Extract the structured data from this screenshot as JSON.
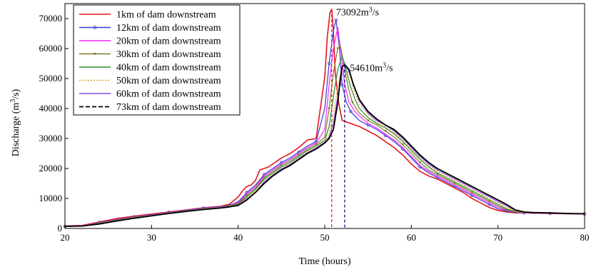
{
  "chart_data": {
    "type": "line",
    "xlabel": "Time (hours)",
    "ylabel": "Discharge (m",
    "ylabel_sup": "3",
    "ylabel_tail": "/s)",
    "xlim": [
      20,
      80
    ],
    "ylim": [
      0,
      75000
    ],
    "xticks": [
      20,
      30,
      40,
      50,
      60,
      70,
      80
    ],
    "yticks": [
      0,
      10000,
      20000,
      30000,
      40000,
      50000,
      60000,
      70000
    ],
    "grid": false,
    "legend_position": "top-left",
    "series": [
      {
        "name": "1km of dam downstream",
        "color": "#e8141c",
        "style": "solid",
        "x": [
          20,
          22,
          24,
          26,
          28,
          30,
          32,
          34,
          36,
          38,
          39,
          40,
          40.5,
          41,
          41.5,
          42,
          42.5,
          43,
          43.5,
          44,
          45,
          46,
          47,
          48,
          49,
          50,
          50.3,
          50.6,
          50.8,
          51,
          51.2,
          51.6,
          52,
          53,
          54,
          55,
          56,
          57,
          58,
          59,
          60,
          61,
          62,
          63,
          64,
          65,
          66,
          67,
          68,
          69,
          70,
          71,
          72,
          73,
          74,
          76,
          78,
          80
        ],
        "y": [
          800,
          1000,
          2200,
          3300,
          4100,
          4800,
          5500,
          6200,
          6900,
          7400,
          8100,
          10500,
          12500,
          14000,
          14500,
          16000,
          19500,
          20000,
          20500,
          21500,
          23500,
          25000,
          27000,
          29500,
          30000,
          50500,
          64000,
          72000,
          73092,
          66000,
          52000,
          42000,
          36000,
          35000,
          34000,
          32500,
          31000,
          29000,
          27000,
          24500,
          21500,
          19000,
          17500,
          16500,
          15000,
          13500,
          12000,
          10000,
          8500,
          7000,
          6000,
          5500,
          5200,
          5200,
          5100,
          5000,
          4900,
          4800
        ]
      },
      {
        "name": "12km of dam downstream",
        "color": "#3a3ad8",
        "style": "solid",
        "marker": "circle",
        "x": [
          20,
          22,
          24,
          26,
          28,
          30,
          32,
          34,
          36,
          38,
          39,
          40,
          41,
          42,
          43,
          44,
          45,
          46,
          47,
          48,
          49,
          50,
          50.5,
          51,
          51.3,
          51.7,
          52,
          52.5,
          53,
          54,
          55,
          56,
          57,
          58,
          59,
          60,
          61,
          62,
          63,
          64,
          65,
          66,
          67,
          68,
          69,
          70,
          71,
          72,
          73,
          74,
          76,
          78,
          80
        ],
        "y": [
          700,
          900,
          2000,
          3000,
          3900,
          4600,
          5400,
          6100,
          6800,
          7300,
          7700,
          8900,
          12000,
          14500,
          18000,
          20000,
          22000,
          23500,
          25500,
          27500,
          29000,
          40000,
          55000,
          66000,
          69500,
          60000,
          48000,
          42000,
          39000,
          36000,
          34500,
          33000,
          31000,
          29000,
          26500,
          23500,
          20500,
          18500,
          17000,
          15500,
          14000,
          12500,
          11000,
          9500,
          8000,
          6500,
          5800,
          5300,
          5200,
          5100,
          5000,
          4900,
          4800
        ]
      },
      {
        "name": "20km of dam downstream",
        "color": "#ff22ff",
        "style": "solid",
        "x": [
          20,
          22,
          24,
          26,
          28,
          30,
          32,
          34,
          36,
          38,
          39,
          40,
          41,
          42,
          43,
          44,
          45,
          46,
          47,
          48,
          49,
          50,
          50.5,
          51,
          51.5,
          51.9,
          52.3,
          52.8,
          53.5,
          54,
          55,
          56,
          57,
          58,
          59,
          60,
          61,
          62,
          63,
          64,
          65,
          66,
          67,
          68,
          69,
          70,
          71,
          72,
          73,
          74,
          76,
          78,
          80
        ],
        "y": [
          700,
          900,
          1900,
          2900,
          3800,
          4500,
          5300,
          6000,
          6700,
          7200,
          7600,
          8600,
          11500,
          14000,
          17500,
          19500,
          21500,
          23000,
          25000,
          27000,
          28500,
          33000,
          48000,
          60000,
          67000,
          58000,
          48000,
          42000,
          39000,
          37500,
          35000,
          33500,
          31500,
          29500,
          27000,
          24000,
          21000,
          19000,
          17500,
          16000,
          14500,
          13000,
          11500,
          10000,
          8500,
          7000,
          6000,
          5400,
          5200,
          5100,
          5000,
          4900,
          4800
        ]
      },
      {
        "name": "30km of dam downstream",
        "color": "#7f7a2a",
        "style": "solid",
        "marker": "triangle",
        "x": [
          20,
          22,
          24,
          26,
          28,
          30,
          32,
          34,
          36,
          38,
          39,
          40,
          41,
          42,
          43,
          44,
          45,
          46,
          47,
          48,
          49,
          50,
          50.5,
          51,
          51.5,
          51.8,
          52.2,
          52.7,
          53.2,
          54,
          55,
          56,
          57,
          58,
          59,
          60,
          61,
          62,
          63,
          64,
          65,
          66,
          67,
          68,
          69,
          70,
          71,
          72,
          73,
          74,
          76,
          78,
          80
        ],
        "y": [
          700,
          800,
          1800,
          2800,
          3700,
          4400,
          5200,
          5900,
          6600,
          7100,
          7500,
          8300,
          11000,
          13500,
          17000,
          19000,
          21000,
          22500,
          24500,
          26500,
          28000,
          30500,
          40000,
          52000,
          60000,
          61000,
          55000,
          47000,
          42000,
          38500,
          36000,
          34500,
          32500,
          30500,
          28000,
          25000,
          22000,
          19500,
          18000,
          16500,
          15000,
          13500,
          12000,
          10500,
          9000,
          7500,
          6200,
          5500,
          5300,
          5200,
          5100,
          5000,
          4900
        ]
      },
      {
        "name": "40km of dam downstream",
        "color": "#2e8b2e",
        "style": "solid",
        "x": [
          20,
          22,
          24,
          26,
          28,
          30,
          32,
          34,
          36,
          38,
          39,
          40,
          41,
          42,
          43,
          44,
          45,
          46,
          47,
          48,
          49,
          50,
          50.5,
          51,
          51.5,
          52,
          52.4,
          52.9,
          53.5,
          54,
          55,
          56,
          57,
          58,
          59,
          60,
          61,
          62,
          63,
          64,
          65,
          66,
          67,
          68,
          69,
          70,
          71,
          72,
          73,
          74,
          76,
          78,
          80
        ],
        "y": [
          700,
          800,
          1700,
          2700,
          3600,
          4400,
          5100,
          5800,
          6500,
          7000,
          7400,
          8100,
          10500,
          13000,
          16500,
          18500,
          20500,
          22000,
          24000,
          26000,
          27500,
          29500,
          34000,
          44000,
          53000,
          57500,
          54000,
          48000,
          43000,
          40000,
          37000,
          35000,
          33500,
          31500,
          29000,
          26000,
          23000,
          20500,
          18500,
          17000,
          15500,
          14000,
          12500,
          11000,
          9500,
          8000,
          6500,
          5600,
          5400,
          5300,
          5200,
          5000,
          4900
        ]
      },
      {
        "name": "50km of dam downstream",
        "color": "#e8a030",
        "style": "dotted",
        "x": [
          20,
          22,
          24,
          26,
          28,
          30,
          32,
          34,
          36,
          38,
          39,
          40,
          41,
          42,
          43,
          44,
          45,
          46,
          47,
          48,
          49,
          50,
          50.5,
          51,
          51.5,
          52,
          52.5,
          53,
          53.5,
          54,
          55,
          56,
          57,
          58,
          59,
          60,
          61,
          62,
          63,
          64,
          65,
          66,
          67,
          68,
          69,
          70,
          71,
          72,
          73,
          74,
          76,
          78,
          80
        ],
        "y": [
          700,
          800,
          1600,
          2600,
          3500,
          4300,
          5000,
          5700,
          6400,
          6900,
          7300,
          7900,
          10000,
          12500,
          16000,
          18000,
          20000,
          21500,
          23500,
          25500,
          27000,
          29000,
          31500,
          38000,
          47000,
          54000,
          54500,
          50000,
          45000,
          41500,
          38000,
          35500,
          34000,
          32000,
          29500,
          26500,
          23500,
          21000,
          19000,
          17500,
          16000,
          14500,
          13000,
          11500,
          10000,
          8500,
          7000,
          5800,
          5400,
          5300,
          5200,
          5000,
          4900
        ]
      },
      {
        "name": "60km of dam downstream",
        "color": "#8a4be8",
        "style": "solid",
        "x": [
          20,
          22,
          24,
          26,
          28,
          30,
          32,
          34,
          36,
          38,
          39,
          40,
          41,
          42,
          43,
          44,
          45,
          46,
          47,
          48,
          49,
          50,
          50.5,
          51,
          51.5,
          52,
          52.5,
          53,
          53.5,
          54,
          55,
          56,
          57,
          58,
          59,
          60,
          61,
          62,
          63,
          64,
          65,
          66,
          67,
          68,
          69,
          70,
          71,
          72,
          73,
          74,
          76,
          78,
          80
        ],
        "y": [
          700,
          800,
          1600,
          2500,
          3500,
          4300,
          5000,
          5700,
          6400,
          6900,
          7300,
          7800,
          9800,
          12000,
          15500,
          17800,
          19800,
          21300,
          23300,
          25300,
          26800,
          28800,
          30500,
          35000,
          44000,
          51500,
          54000,
          51000,
          46500,
          42500,
          38500,
          36000,
          34500,
          32500,
          30000,
          27000,
          24000,
          21500,
          19500,
          18000,
          16500,
          15000,
          13500,
          12000,
          10500,
          9000,
          7500,
          6000,
          5500,
          5300,
          5200,
          5000,
          4900
        ]
      },
      {
        "name": "73km of dam downstream",
        "color": "#000000",
        "style": "solid-heavy",
        "x": [
          20,
          22,
          24,
          26,
          28,
          30,
          32,
          34,
          36,
          38,
          39,
          40,
          41,
          42,
          43,
          44,
          45,
          46,
          47,
          48,
          49,
          50,
          50.5,
          51,
          51.5,
          51.8,
          52,
          52.3,
          52.8,
          53.3,
          54,
          55,
          56,
          57,
          58,
          59,
          60,
          61,
          62,
          63,
          64,
          65,
          66,
          67,
          68,
          69,
          70,
          71,
          72,
          73,
          74,
          76,
          78,
          80
        ],
        "y": [
          700,
          800,
          1500,
          2500,
          3400,
          4200,
          5000,
          5700,
          6300,
          6800,
          7200,
          7700,
          9500,
          12000,
          15000,
          17500,
          19500,
          21000,
          23000,
          25000,
          26500,
          28500,
          30000,
          33000,
          42000,
          50000,
          54000,
          54610,
          53000,
          48000,
          43000,
          39000,
          36500,
          34500,
          33000,
          30500,
          27500,
          24500,
          22000,
          20000,
          18500,
          17000,
          15500,
          14000,
          12500,
          11000,
          9500,
          8000,
          6200,
          5500,
          5300,
          5200,
          5000,
          4900
        ]
      }
    ],
    "legend_lines": [
      "#e8141c",
      "#3a3ad8",
      "#ff22ff",
      "#7f7a2a",
      "#2e8b2e",
      "#e8a030",
      "#8a4be8",
      "#000000"
    ],
    "markers_vertical": [
      {
        "x": 50.8,
        "y": 73092,
        "color": "#e8141c"
      },
      {
        "x": 52.3,
        "y": 54610,
        "color": "#000080"
      }
    ],
    "annotations": [
      {
        "label": "73092m",
        "sup": "3",
        "tail": "/s",
        "x": 51.3,
        "y": 72000
      },
      {
        "label": "54610m",
        "sup": "3",
        "tail": "/s",
        "x": 52.9,
        "y": 53500
      }
    ]
  }
}
